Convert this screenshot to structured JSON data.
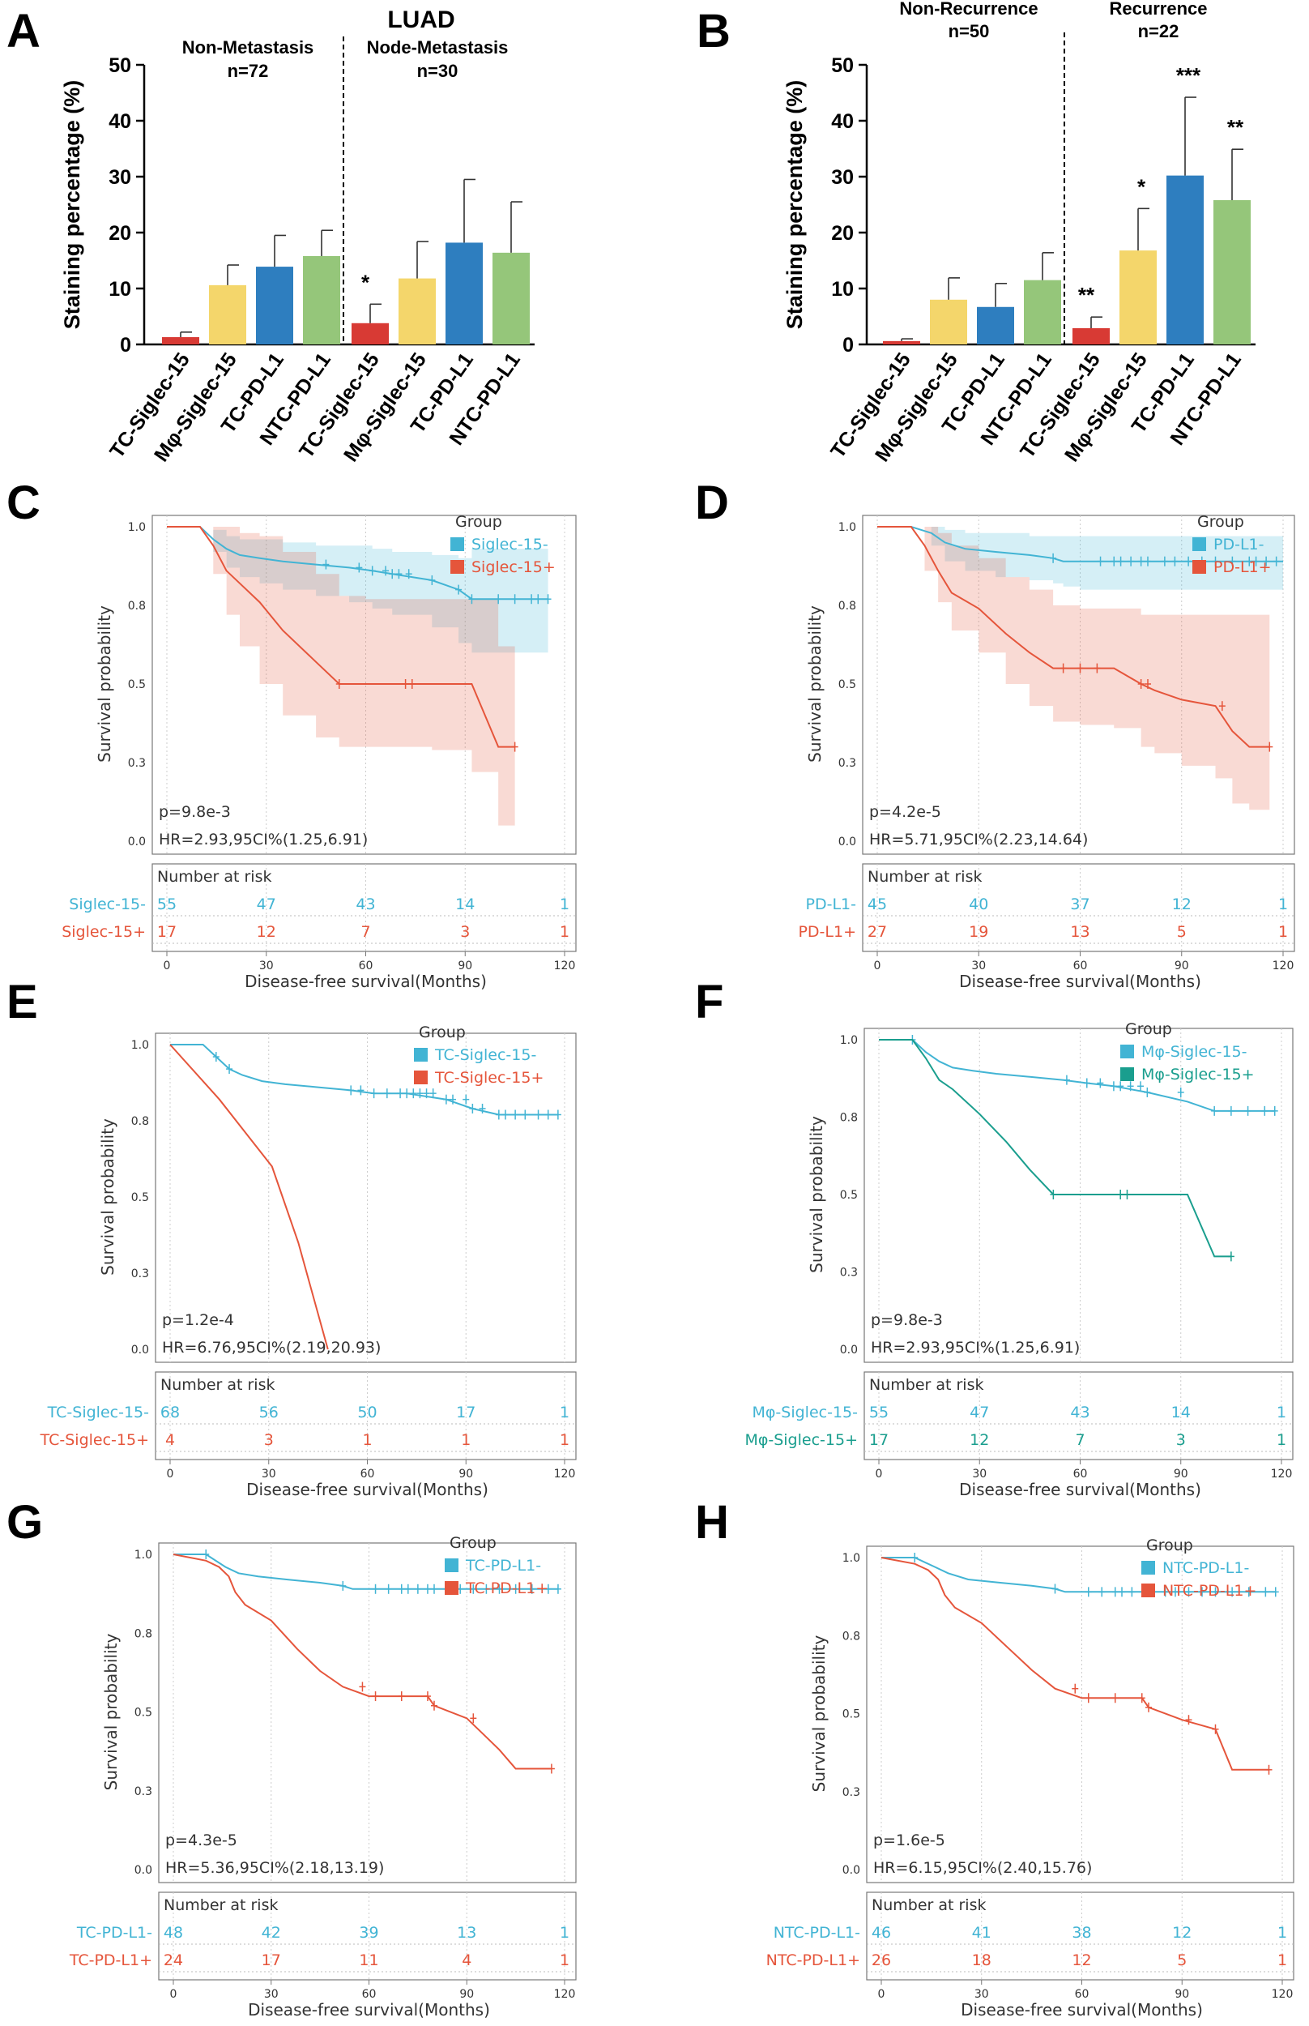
{
  "colors": {
    "red": "#d83a34",
    "yellow": "#f4d66b",
    "blue": "#2e7ebf",
    "green": "#95c67a",
    "km_cyan": "#42b4d4",
    "km_red": "#e5553b",
    "km_teal": "#1a9e8e"
  },
  "chart_data": [
    {
      "panel": "A",
      "type": "bar",
      "title": "LUAD",
      "ylabel": "Staining percentage (%)",
      "ylim": [
        0,
        50
      ],
      "yticks": [
        "0",
        "10",
        "20",
        "30",
        "40",
        "50"
      ],
      "groups": [
        {
          "name": "Non-Metastasis",
          "n": "n=72"
        },
        {
          "name": "Node-Metastasis",
          "n": "n=30"
        }
      ],
      "categories": [
        "TC-Siglec-15",
        "Mφ-Siglec-15",
        "TC-PD-L1",
        "NTC-PD-L1",
        "TC-Siglec-15",
        "Mφ-Siglec-15",
        "TC-PD-L1",
        "NTC-PD-L1"
      ],
      "values": [
        1.3,
        10.6,
        13.9,
        15.8,
        3.8,
        11.8,
        18.2,
        16.4
      ],
      "errors": [
        0.9,
        3.6,
        5.6,
        4.6,
        3.4,
        6.6,
        11.3,
        9.1
      ],
      "colors": [
        "red",
        "yellow",
        "blue",
        "green",
        "red",
        "yellow",
        "blue",
        "green"
      ],
      "significance": [
        "",
        "",
        "",
        "",
        "*",
        "",
        "",
        ""
      ]
    },
    {
      "panel": "B",
      "type": "bar",
      "title": "",
      "ylabel": "Staining percentage (%)",
      "ylim": [
        0,
        50
      ],
      "yticks": [
        "0",
        "10",
        "20",
        "30",
        "40",
        "50"
      ],
      "groups": [
        {
          "name": "Non-Recurrence",
          "n": "n=50"
        },
        {
          "name": "Recurrence",
          "n": "n=22"
        }
      ],
      "categories": [
        "TC-Siglec-15",
        "Mφ-Siglec-15",
        "TC-PD-L1",
        "NTC-PD-L1",
        "TC-Siglec-15",
        "Mφ-Siglec-15",
        "TC-PD-L1",
        "NTC-PD-L1"
      ],
      "values": [
        0.6,
        8.0,
        6.7,
        11.5,
        2.9,
        16.8,
        30.2,
        25.8
      ],
      "errors": [
        0.4,
        3.9,
        4.2,
        4.9,
        2.0,
        7.5,
        14.0,
        9.1
      ],
      "colors": [
        "red",
        "yellow",
        "blue",
        "green",
        "red",
        "yellow",
        "blue",
        "green"
      ],
      "significance": [
        "",
        "",
        "",
        "",
        "**",
        "*",
        "***",
        "**"
      ]
    },
    {
      "panel": "C",
      "type": "line",
      "legend_title": "Group",
      "ylabel": "Survival probability",
      "xlabel": "Disease-free survival(Months)",
      "yticks": [
        "0.0",
        "0.3",
        "0.5",
        "0.8",
        "1.0"
      ],
      "xticks": [
        "0",
        "30",
        "60",
        "90",
        "120"
      ],
      "p": "p=9.8e-3",
      "hr": "HR=2.93,95CI%(1.25,6.91)",
      "risk_title": "Number at risk",
      "series": [
        {
          "name": "Siglec-15-",
          "color": "km_cyan",
          "ci": true,
          "x": [
            0,
            10,
            14,
            18,
            22,
            28,
            35,
            45,
            55,
            62,
            68,
            80,
            88,
            92,
            100,
            115
          ],
          "y": [
            1.0,
            1.0,
            0.96,
            0.93,
            0.91,
            0.9,
            0.89,
            0.88,
            0.87,
            0.86,
            0.85,
            0.83,
            0.8,
            0.77,
            0.77,
            0.77
          ],
          "lower": [
            1.0,
            1.0,
            0.92,
            0.87,
            0.84,
            0.82,
            0.8,
            0.78,
            0.76,
            0.74,
            0.72,
            0.68,
            0.63,
            0.6,
            0.6,
            0.6
          ],
          "upper": [
            1.0,
            1.0,
            0.99,
            0.97,
            0.96,
            0.96,
            0.95,
            0.94,
            0.94,
            0.93,
            0.92,
            0.91,
            0.9,
            0.93,
            0.93,
            0.93
          ],
          "censor": [
            48,
            58,
            62,
            66,
            68,
            70,
            73,
            80,
            88,
            92,
            100,
            105,
            110,
            112,
            115
          ],
          "risk": [
            "55",
            "47",
            "43",
            "14",
            "1"
          ]
        },
        {
          "name": "Siglec-15+",
          "color": "km_red",
          "ci": true,
          "x": [
            0,
            10,
            14,
            18,
            22,
            28,
            35,
            45,
            52,
            60,
            70,
            80,
            92,
            100,
            105
          ],
          "y": [
            1.0,
            1.0,
            0.94,
            0.86,
            0.82,
            0.76,
            0.67,
            0.57,
            0.5,
            0.5,
            0.5,
            0.5,
            0.5,
            0.3,
            0.3
          ],
          "lower": [
            1.0,
            1.0,
            0.85,
            0.72,
            0.62,
            0.5,
            0.4,
            0.33,
            0.3,
            0.3,
            0.3,
            0.29,
            0.22,
            0.05,
            0.05
          ],
          "upper": [
            1.0,
            1.0,
            1.0,
            1.0,
            0.98,
            0.97,
            0.92,
            0.85,
            0.78,
            0.77,
            0.77,
            0.77,
            0.77,
            0.62,
            0.62
          ],
          "censor": [
            52,
            72,
            74,
            105
          ],
          "risk": [
            "17",
            "12",
            "7",
            "3",
            "1"
          ]
        }
      ]
    },
    {
      "panel": "D",
      "type": "line",
      "legend_title": "Group",
      "ylabel": "Survival probability",
      "xlabel": "Disease-free survival(Months)",
      "yticks": [
        "0.0",
        "0.3",
        "0.5",
        "0.8",
        "1.0"
      ],
      "xticks": [
        "0",
        "30",
        "60",
        "90",
        "120"
      ],
      "p": "p=4.2e-5",
      "hr": "HR=5.71,95CI%(2.23,14.64)",
      "risk_title": "Number at risk",
      "series": [
        {
          "name": "PD-L1-",
          "color": "km_cyan",
          "ci": true,
          "x": [
            0,
            10,
            16,
            20,
            26,
            35,
            45,
            52,
            55,
            60,
            120
          ],
          "y": [
            1.0,
            1.0,
            0.98,
            0.95,
            0.93,
            0.92,
            0.91,
            0.9,
            0.89,
            0.89,
            0.89
          ],
          "lower": [
            1.0,
            1.0,
            0.94,
            0.89,
            0.86,
            0.84,
            0.83,
            0.82,
            0.81,
            0.8,
            0.78
          ],
          "upper": [
            1.0,
            1.0,
            1.0,
            0.99,
            0.98,
            0.98,
            0.97,
            0.97,
            0.97,
            0.97,
            0.97
          ],
          "censor": [
            52,
            66,
            70,
            72,
            75,
            78,
            80,
            85,
            88,
            92,
            96,
            100,
            105,
            110,
            112,
            115,
            118
          ],
          "risk": [
            "45",
            "40",
            "37",
            "12",
            "1"
          ]
        },
        {
          "name": "PD-L1+",
          "color": "km_red",
          "ci": true,
          "x": [
            0,
            10,
            14,
            18,
            22,
            30,
            38,
            45,
            52,
            60,
            70,
            78,
            82,
            90,
            100,
            105,
            110,
            116
          ],
          "y": [
            1.0,
            1.0,
            0.94,
            0.86,
            0.79,
            0.74,
            0.66,
            0.6,
            0.55,
            0.55,
            0.55,
            0.5,
            0.48,
            0.45,
            0.43,
            0.35,
            0.3,
            0.3
          ],
          "lower": [
            1.0,
            1.0,
            0.86,
            0.76,
            0.67,
            0.6,
            0.5,
            0.43,
            0.38,
            0.37,
            0.36,
            0.3,
            0.28,
            0.24,
            0.2,
            0.12,
            0.1,
            0.1
          ],
          "upper": [
            1.0,
            1.0,
            1.0,
            0.98,
            0.94,
            0.9,
            0.84,
            0.8,
            0.75,
            0.74,
            0.74,
            0.72,
            0.72,
            0.72,
            0.72,
            0.72,
            0.72,
            0.72
          ],
          "censor": [
            55,
            60,
            65,
            78,
            80,
            102,
            116
          ],
          "risk": [
            "27",
            "19",
            "13",
            "5",
            "1"
          ]
        }
      ]
    },
    {
      "panel": "E",
      "type": "line",
      "legend_title": "Group",
      "ylabel": "Survival probability",
      "xlabel": "Disease-free survival(Months)",
      "yticks": [
        "0.0",
        "0.3",
        "0.5",
        "0.8",
        "1.0"
      ],
      "xticks": [
        "0",
        "30",
        "60",
        "90",
        "120"
      ],
      "p": "p=1.2e-4",
      "hr": "HR=6.76,95CI%(2.19,20.93)",
      "risk_title": "Number at risk",
      "series": [
        {
          "name": "TC-Siglec-15-",
          "color": "km_cyan",
          "ci": false,
          "x": [
            0,
            10,
            14,
            18,
            22,
            28,
            35,
            45,
            55,
            62,
            72,
            84,
            92,
            100,
            118
          ],
          "y": [
            1.0,
            1.0,
            0.96,
            0.92,
            0.9,
            0.88,
            0.87,
            0.86,
            0.85,
            0.84,
            0.84,
            0.82,
            0.79,
            0.77,
            0.77
          ],
          "censor": [
            14,
            18,
            55,
            58,
            62,
            66,
            70,
            72,
            74,
            76,
            78,
            80,
            84,
            86,
            90,
            92,
            95,
            100,
            102,
            105,
            108,
            112,
            115,
            118
          ],
          "risk": [
            "68",
            "56",
            "50",
            "17",
            "1"
          ]
        },
        {
          "name": "TC-Siglec-15+",
          "color": "km_red",
          "ci": false,
          "x": [
            0,
            15,
            31,
            39,
            48
          ],
          "y": [
            1.0,
            0.82,
            0.6,
            0.35,
            0.0
          ],
          "censor": [],
          "risk": [
            "4",
            "3",
            "1",
            "1",
            "1"
          ]
        }
      ]
    },
    {
      "panel": "F",
      "type": "line",
      "legend_title": "Group",
      "ylabel": "Survival probability",
      "xlabel": "Disease-free survival(Months)",
      "yticks": [
        "0.0",
        "0.3",
        "0.5",
        "0.8",
        "1.0"
      ],
      "xticks": [
        "0",
        "30",
        "60",
        "90",
        "120"
      ],
      "p": "p=9.8e-3",
      "hr": "HR=2.93,95CI%(1.25,6.91)",
      "risk_title": "Number at risk",
      "series": [
        {
          "name": "Mφ-Siglec-15-",
          "color": "km_cyan",
          "ci": false,
          "x": [
            0,
            10,
            14,
            18,
            22,
            28,
            35,
            45,
            55,
            62,
            70,
            80,
            92,
            100,
            118
          ],
          "y": [
            1.0,
            1.0,
            0.96,
            0.93,
            0.91,
            0.9,
            0.89,
            0.88,
            0.87,
            0.86,
            0.85,
            0.83,
            0.8,
            0.77,
            0.77
          ],
          "censor": [
            10,
            56,
            62,
            66,
            70,
            72,
            75,
            78,
            80,
            90,
            100,
            105,
            110,
            115,
            118
          ],
          "risk": [
            "55",
            "47",
            "43",
            "14",
            "1"
          ]
        },
        {
          "name": "Mφ-Siglec-15+",
          "color": "km_teal",
          "ci": false,
          "x": [
            0,
            10,
            14,
            18,
            22,
            30,
            38,
            45,
            52,
            60,
            70,
            80,
            92,
            100,
            105
          ],
          "y": [
            1.0,
            1.0,
            0.94,
            0.87,
            0.84,
            0.76,
            0.67,
            0.58,
            0.5,
            0.5,
            0.5,
            0.5,
            0.5,
            0.3,
            0.3
          ],
          "censor": [
            52,
            72,
            74,
            105
          ],
          "risk": [
            "17",
            "12",
            "7",
            "3",
            "1"
          ]
        }
      ]
    },
    {
      "panel": "G",
      "type": "line",
      "legend_title": "Group",
      "ylabel": "Survival probability",
      "xlabel": "Disease-free survival(Months)",
      "yticks": [
        "0.0",
        "0.3",
        "0.5",
        "0.8",
        "1.0"
      ],
      "xticks": [
        "0",
        "30",
        "60",
        "90",
        "120"
      ],
      "p": "p=4.3e-5",
      "hr": "HR=5.36,95CI%(2.18,13.19)",
      "risk_title": "Number at risk",
      "series": [
        {
          "name": "TC-PD-L1-",
          "color": "km_cyan",
          "ci": false,
          "x": [
            0,
            10,
            16,
            20,
            26,
            35,
            45,
            52,
            55,
            60,
            118
          ],
          "y": [
            1.0,
            1.0,
            0.96,
            0.94,
            0.93,
            0.92,
            0.91,
            0.9,
            0.89,
            0.89,
            0.89
          ],
          "censor": [
            10,
            52,
            62,
            66,
            70,
            72,
            75,
            78,
            80,
            85,
            88,
            92,
            96,
            100,
            105,
            110,
            115,
            118
          ],
          "risk": [
            "48",
            "42",
            "39",
            "13",
            "1"
          ]
        },
        {
          "name": "TC-PD-L1+",
          "color": "km_red",
          "ci": false,
          "x": [
            0,
            10,
            14,
            17,
            19,
            22,
            30,
            38,
            45,
            52,
            60,
            70,
            78,
            80,
            90,
            95,
            100,
            105,
            116
          ],
          "y": [
            1.0,
            0.98,
            0.96,
            0.93,
            0.88,
            0.84,
            0.79,
            0.7,
            0.63,
            0.58,
            0.55,
            0.55,
            0.55,
            0.52,
            0.48,
            0.43,
            0.38,
            0.32,
            0.32
          ],
          "censor": [
            58,
            62,
            70,
            78,
            80,
            92,
            116
          ],
          "risk": [
            "24",
            "17",
            "11",
            "4",
            "1"
          ]
        }
      ]
    },
    {
      "panel": "H",
      "type": "line",
      "legend_title": "Group",
      "ylabel": "Survival probability",
      "xlabel": "Disease-free survival(Months)",
      "yticks": [
        "0.0",
        "0.3",
        "0.5",
        "0.8",
        "1.0"
      ],
      "xticks": [
        "0",
        "30",
        "60",
        "90",
        "120"
      ],
      "p": "p=1.6e-5",
      "hr": "HR=6.15,95CI%(2.40,15.76)",
      "risk_title": "Number at risk",
      "series": [
        {
          "name": "NTC-PD-L1-",
          "color": "km_cyan",
          "ci": false,
          "x": [
            0,
            10,
            16,
            20,
            26,
            35,
            45,
            52,
            55,
            60,
            118
          ],
          "y": [
            1.0,
            1.0,
            0.97,
            0.95,
            0.93,
            0.92,
            0.91,
            0.9,
            0.89,
            0.89,
            0.89
          ],
          "censor": [
            10,
            52,
            62,
            66,
            70,
            72,
            75,
            78,
            80,
            85,
            88,
            92,
            96,
            100,
            105,
            110,
            115,
            118
          ],
          "risk": [
            "46",
            "41",
            "38",
            "12",
            "1"
          ]
        },
        {
          "name": "NTC-PD-L1+",
          "color": "km_red",
          "ci": false,
          "x": [
            0,
            10,
            14,
            17,
            19,
            22,
            30,
            38,
            45,
            52,
            60,
            70,
            78,
            80,
            90,
            100,
            105,
            116
          ],
          "y": [
            1.0,
            0.98,
            0.96,
            0.93,
            0.88,
            0.84,
            0.79,
            0.71,
            0.64,
            0.58,
            0.55,
            0.55,
            0.55,
            0.52,
            0.48,
            0.45,
            0.32,
            0.32
          ],
          "censor": [
            58,
            62,
            70,
            78,
            80,
            92,
            100,
            116
          ],
          "risk": [
            "26",
            "18",
            "12",
            "5",
            "1"
          ]
        }
      ]
    }
  ]
}
